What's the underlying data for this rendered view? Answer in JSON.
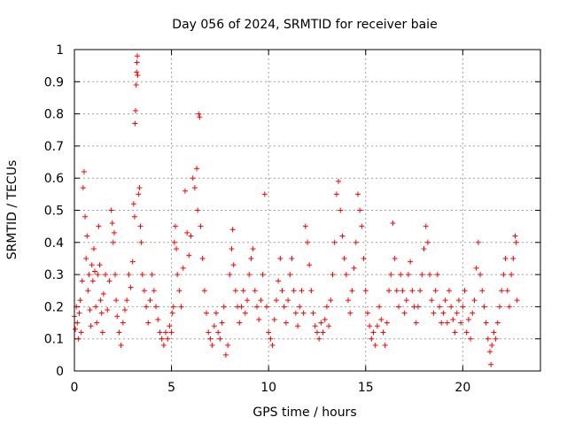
{
  "chart_data": {
    "type": "scatter",
    "title": "Day 056 of 2024, SRMTID for receiver baie",
    "xlabel": "GPS time / hours",
    "ylabel": "SRMTID / TECUs",
    "xlim": [
      0,
      24
    ],
    "ylim": [
      0,
      1
    ],
    "x_ticks": [
      0,
      5,
      10,
      15,
      20
    ],
    "x_tick_labels": [
      "0",
      "5",
      "10",
      "15",
      "20"
    ],
    "y_ticks": [
      0,
      0.1,
      0.2,
      0.3,
      0.4,
      0.5,
      0.6,
      0.7,
      0.8,
      0.9,
      1
    ],
    "y_tick_labels": [
      "0",
      "0.1",
      "0.2",
      "0.3",
      "0.4",
      "0.5",
      "0.6",
      "0.7",
      "0.8",
      "0.9",
      "1"
    ],
    "grid": true,
    "marker": "+",
    "series_color": "#ff0000",
    "series": [
      {
        "name": "SRMTID",
        "points": [
          [
            0.0,
            0.17
          ],
          [
            0.05,
            0.13
          ],
          [
            0.1,
            0.2
          ],
          [
            0.15,
            0.15
          ],
          [
            0.2,
            0.1
          ],
          [
            0.25,
            0.18
          ],
          [
            0.3,
            0.22
          ],
          [
            0.35,
            0.12
          ],
          [
            0.4,
            0.28
          ],
          [
            0.45,
            0.57
          ],
          [
            0.5,
            0.62
          ],
          [
            0.55,
            0.48
          ],
          [
            0.6,
            0.35
          ],
          [
            0.65,
            0.42
          ],
          [
            0.7,
            0.25
          ],
          [
            0.75,
            0.3
          ],
          [
            0.8,
            0.19
          ],
          [
            0.85,
            0.14
          ],
          [
            0.9,
            0.33
          ],
          [
            0.95,
            0.28
          ],
          [
            1.0,
            0.38
          ],
          [
            1.05,
            0.31
          ],
          [
            1.1,
            0.2
          ],
          [
            1.15,
            0.15
          ],
          [
            1.2,
            0.3
          ],
          [
            1.25,
            0.45
          ],
          [
            1.3,
            0.33
          ],
          [
            1.35,
            0.22
          ],
          [
            1.4,
            0.18
          ],
          [
            1.45,
            0.12
          ],
          [
            1.5,
            0.24
          ],
          [
            1.6,
            0.3
          ],
          [
            1.7,
            0.19
          ],
          [
            1.8,
            0.28
          ],
          [
            1.9,
            0.5
          ],
          [
            1.95,
            0.46
          ],
          [
            2.0,
            0.4
          ],
          [
            2.05,
            0.43
          ],
          [
            2.1,
            0.3
          ],
          [
            2.15,
            0.22
          ],
          [
            2.2,
            0.17
          ],
          [
            2.3,
            0.12
          ],
          [
            2.4,
            0.08
          ],
          [
            2.5,
            0.15
          ],
          [
            2.6,
            0.19
          ],
          [
            2.7,
            0.22
          ],
          [
            2.8,
            0.3
          ],
          [
            2.9,
            0.26
          ],
          [
            3.0,
            0.34
          ],
          [
            3.05,
            0.52
          ],
          [
            3.1,
            0.48
          ],
          [
            3.12,
            0.77
          ],
          [
            3.15,
            0.81
          ],
          [
            3.18,
            0.89
          ],
          [
            3.2,
            0.93
          ],
          [
            3.22,
            0.96
          ],
          [
            3.24,
            0.98
          ],
          [
            3.26,
            0.92
          ],
          [
            3.3,
            0.55
          ],
          [
            3.35,
            0.57
          ],
          [
            3.4,
            0.45
          ],
          [
            3.45,
            0.4
          ],
          [
            3.5,
            0.3
          ],
          [
            3.6,
            0.25
          ],
          [
            3.7,
            0.2
          ],
          [
            3.8,
            0.15
          ],
          [
            3.9,
            0.22
          ],
          [
            4.0,
            0.3
          ],
          [
            4.1,
            0.25
          ],
          [
            4.2,
            0.2
          ],
          [
            4.3,
            0.16
          ],
          [
            4.4,
            0.12
          ],
          [
            4.5,
            0.1
          ],
          [
            4.6,
            0.08
          ],
          [
            4.7,
            0.12
          ],
          [
            4.8,
            0.1
          ],
          [
            4.9,
            0.14
          ],
          [
            5.0,
            0.12
          ],
          [
            5.05,
            0.18
          ],
          [
            5.1,
            0.2
          ],
          [
            5.15,
            0.4
          ],
          [
            5.2,
            0.45
          ],
          [
            5.25,
            0.38
          ],
          [
            5.3,
            0.3
          ],
          [
            5.4,
            0.25
          ],
          [
            5.5,
            0.2
          ],
          [
            5.6,
            0.32
          ],
          [
            5.7,
            0.56
          ],
          [
            5.8,
            0.43
          ],
          [
            5.9,
            0.36
          ],
          [
            6.0,
            0.42
          ],
          [
            6.1,
            0.6
          ],
          [
            6.2,
            0.57
          ],
          [
            6.3,
            0.63
          ],
          [
            6.35,
            0.5
          ],
          [
            6.4,
            0.8
          ],
          [
            6.45,
            0.79
          ],
          [
            6.5,
            0.45
          ],
          [
            6.6,
            0.35
          ],
          [
            6.7,
            0.25
          ],
          [
            6.8,
            0.18
          ],
          [
            6.9,
            0.12
          ],
          [
            7.0,
            0.1
          ],
          [
            7.1,
            0.08
          ],
          [
            7.2,
            0.14
          ],
          [
            7.3,
            0.18
          ],
          [
            7.4,
            0.12
          ],
          [
            7.5,
            0.1
          ],
          [
            7.6,
            0.15
          ],
          [
            7.7,
            0.2
          ],
          [
            7.8,
            0.05
          ],
          [
            7.9,
            0.08
          ],
          [
            8.0,
            0.3
          ],
          [
            8.1,
            0.38
          ],
          [
            8.15,
            0.44
          ],
          [
            8.2,
            0.33
          ],
          [
            8.3,
            0.25
          ],
          [
            8.4,
            0.2
          ],
          [
            8.5,
            0.15
          ],
          [
            8.6,
            0.2
          ],
          [
            8.7,
            0.25
          ],
          [
            8.8,
            0.18
          ],
          [
            8.9,
            0.22
          ],
          [
            9.0,
            0.3
          ],
          [
            9.1,
            0.35
          ],
          [
            9.2,
            0.38
          ],
          [
            9.3,
            0.25
          ],
          [
            9.4,
            0.2
          ],
          [
            9.5,
            0.16
          ],
          [
            9.6,
            0.22
          ],
          [
            9.7,
            0.3
          ],
          [
            9.8,
            0.55
          ],
          [
            9.9,
            0.2
          ],
          [
            10.0,
            0.12
          ],
          [
            10.1,
            0.1
          ],
          [
            10.2,
            0.08
          ],
          [
            10.3,
            0.16
          ],
          [
            10.4,
            0.22
          ],
          [
            10.5,
            0.28
          ],
          [
            10.6,
            0.35
          ],
          [
            10.7,
            0.25
          ],
          [
            10.8,
            0.2
          ],
          [
            10.9,
            0.15
          ],
          [
            11.0,
            0.22
          ],
          [
            11.1,
            0.3
          ],
          [
            11.2,
            0.35
          ],
          [
            11.3,
            0.25
          ],
          [
            11.4,
            0.18
          ],
          [
            11.5,
            0.14
          ],
          [
            11.6,
            0.2
          ],
          [
            11.7,
            0.25
          ],
          [
            11.8,
            0.18
          ],
          [
            11.9,
            0.45
          ],
          [
            12.0,
            0.4
          ],
          [
            12.1,
            0.33
          ],
          [
            12.2,
            0.25
          ],
          [
            12.3,
            0.18
          ],
          [
            12.4,
            0.14
          ],
          [
            12.5,
            0.12
          ],
          [
            12.6,
            0.1
          ],
          [
            12.7,
            0.15
          ],
          [
            12.8,
            0.12
          ],
          [
            12.9,
            0.16
          ],
          [
            13.0,
            0.2
          ],
          [
            13.1,
            0.14
          ],
          [
            13.2,
            0.22
          ],
          [
            13.3,
            0.3
          ],
          [
            13.4,
            0.4
          ],
          [
            13.5,
            0.55
          ],
          [
            13.6,
            0.59
          ],
          [
            13.7,
            0.5
          ],
          [
            13.8,
            0.42
          ],
          [
            13.9,
            0.35
          ],
          [
            14.0,
            0.3
          ],
          [
            14.1,
            0.22
          ],
          [
            14.2,
            0.18
          ],
          [
            14.3,
            0.25
          ],
          [
            14.4,
            0.32
          ],
          [
            14.5,
            0.4
          ],
          [
            14.6,
            0.55
          ],
          [
            14.7,
            0.5
          ],
          [
            14.8,
            0.45
          ],
          [
            14.9,
            0.35
          ],
          [
            15.0,
            0.25
          ],
          [
            15.1,
            0.18
          ],
          [
            15.2,
            0.14
          ],
          [
            15.3,
            0.1
          ],
          [
            15.4,
            0.12
          ],
          [
            15.5,
            0.08
          ],
          [
            15.6,
            0.14
          ],
          [
            15.7,
            0.2
          ],
          [
            15.8,
            0.16
          ],
          [
            15.9,
            0.12
          ],
          [
            16.0,
            0.08
          ],
          [
            16.1,
            0.15
          ],
          [
            16.2,
            0.25
          ],
          [
            16.3,
            0.3
          ],
          [
            16.4,
            0.46
          ],
          [
            16.5,
            0.35
          ],
          [
            16.6,
            0.25
          ],
          [
            16.7,
            0.2
          ],
          [
            16.8,
            0.3
          ],
          [
            16.9,
            0.25
          ],
          [
            17.0,
            0.18
          ],
          [
            17.1,
            0.22
          ],
          [
            17.2,
            0.3
          ],
          [
            17.3,
            0.34
          ],
          [
            17.4,
            0.25
          ],
          [
            17.5,
            0.2
          ],
          [
            17.6,
            0.15
          ],
          [
            17.7,
            0.2
          ],
          [
            17.8,
            0.25
          ],
          [
            17.9,
            0.3
          ],
          [
            18.0,
            0.38
          ],
          [
            18.1,
            0.45
          ],
          [
            18.2,
            0.4
          ],
          [
            18.3,
            0.3
          ],
          [
            18.4,
            0.22
          ],
          [
            18.5,
            0.18
          ],
          [
            18.6,
            0.25
          ],
          [
            18.7,
            0.3
          ],
          [
            18.8,
            0.2
          ],
          [
            18.9,
            0.15
          ],
          [
            19.0,
            0.18
          ],
          [
            19.1,
            0.22
          ],
          [
            19.2,
            0.15
          ],
          [
            19.3,
            0.25
          ],
          [
            19.4,
            0.2
          ],
          [
            19.5,
            0.16
          ],
          [
            19.6,
            0.12
          ],
          [
            19.7,
            0.18
          ],
          [
            19.8,
            0.22
          ],
          [
            19.9,
            0.15
          ],
          [
            20.0,
            0.2
          ],
          [
            20.1,
            0.25
          ],
          [
            20.2,
            0.12
          ],
          [
            20.3,
            0.16
          ],
          [
            20.4,
            0.1
          ],
          [
            20.5,
            0.18
          ],
          [
            20.6,
            0.22
          ],
          [
            20.7,
            0.32
          ],
          [
            20.8,
            0.4
          ],
          [
            20.9,
            0.3
          ],
          [
            21.0,
            0.25
          ],
          [
            21.1,
            0.2
          ],
          [
            21.2,
            0.15
          ],
          [
            21.3,
            0.1
          ],
          [
            21.4,
            0.06
          ],
          [
            21.45,
            0.02
          ],
          [
            21.5,
            0.08
          ],
          [
            21.6,
            0.12
          ],
          [
            21.7,
            0.1
          ],
          [
            21.8,
            0.15
          ],
          [
            21.9,
            0.2
          ],
          [
            22.0,
            0.25
          ],
          [
            22.1,
            0.3
          ],
          [
            22.2,
            0.35
          ],
          [
            22.3,
            0.25
          ],
          [
            22.4,
            0.2
          ],
          [
            22.5,
            0.3
          ],
          [
            22.6,
            0.35
          ],
          [
            22.7,
            0.42
          ],
          [
            22.75,
            0.4
          ],
          [
            22.8,
            0.22
          ]
        ]
      }
    ]
  }
}
